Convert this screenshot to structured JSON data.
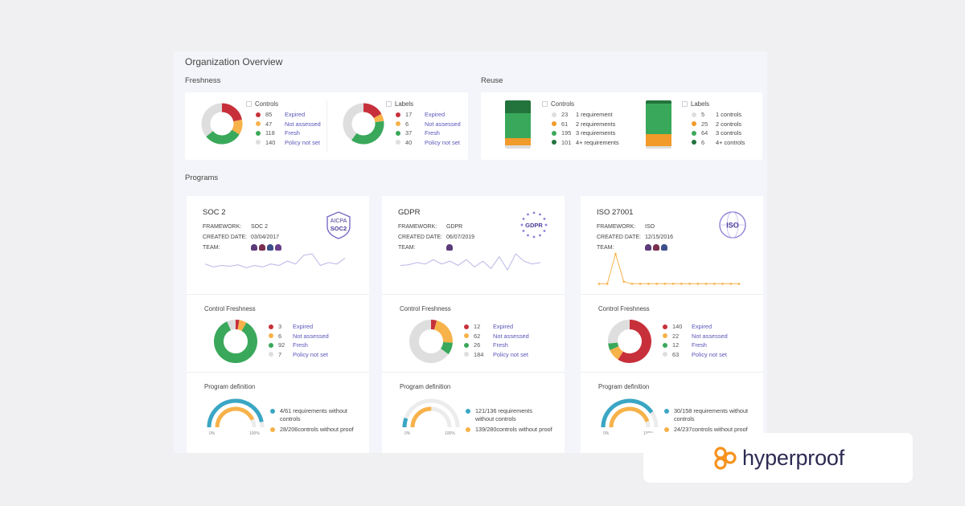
{
  "page": {
    "title": "Organization Overview",
    "freshness_label": "Freshness",
    "reuse_label": "Reuse",
    "programs_label": "Programs"
  },
  "colors": {
    "expired": "#c7303a",
    "not_assessed": "#f7b24a",
    "fresh": "#3aa85a",
    "policy_not_set": "#dedede",
    "reuse_light": "#dedede",
    "reuse_orange": "#f29a2a",
    "reuse_green": "#3aa85a",
    "reuse_dark": "#23743c",
    "gauge_req": "#3aa6c4",
    "gauge_proof": "#f7b24a",
    "brand_orange": "#f6921e"
  },
  "freshness": {
    "controls": {
      "title": "Controls",
      "items": [
        {
          "value": 85,
          "label": "Expired"
        },
        {
          "value": 47,
          "label": "Not assessed"
        },
        {
          "value": 118,
          "label": "Fresh"
        },
        {
          "value": 140,
          "label": "Policy not set"
        }
      ]
    },
    "labels": {
      "title": "Labels",
      "items": [
        {
          "value": 17,
          "label": "Expired"
        },
        {
          "value": 6,
          "label": "Not assessed"
        },
        {
          "value": 37,
          "label": "Fresh"
        },
        {
          "value": 40,
          "label": "Policy not set"
        }
      ]
    }
  },
  "reuse": {
    "controls": {
      "title": "Controls",
      "items": [
        {
          "value": 23,
          "label": "1 requirement"
        },
        {
          "value": 61,
          "label": "2 requirements"
        },
        {
          "value": 195,
          "label": "3 requirements"
        },
        {
          "value": 101,
          "label": "4+ requirements"
        }
      ]
    },
    "labels": {
      "title": "Labels",
      "items": [
        {
          "value": 5,
          "label": "1 controls"
        },
        {
          "value": 25,
          "label": "2 controls"
        },
        {
          "value": 64,
          "label": "3 controls"
        },
        {
          "value": 6,
          "label": "4+ controls"
        }
      ]
    }
  },
  "programs": [
    {
      "name": "SOC 2",
      "framework_key": "FRAMEWORK:",
      "framework": "SOC 2",
      "created_key": "CREATED DATE:",
      "created": "03/04/2017",
      "team_key": "TEAM:",
      "team_size": 4,
      "badge_icon": "aicpa-soc2-badge-icon",
      "badge_top": "AICPA",
      "badge_bottom": "SOC2",
      "trend": [
        30,
        26,
        28,
        27,
        29,
        25,
        28,
        26,
        30,
        28,
        34,
        30,
        42,
        44,
        28,
        32,
        30,
        38
      ],
      "freshness_title": "Control Freshness",
      "freshness": [
        {
          "value": "3",
          "label": "Expired"
        },
        {
          "value": "6",
          "label": "Not assessed"
        },
        {
          "value": "92",
          "label": "Fresh"
        },
        {
          "value": "7",
          "label": "Policy not set"
        }
      ],
      "definition_title": "Program definition",
      "requirements": {
        "text": "4/61 requirements without controls",
        "value": 4,
        "total": 61
      },
      "proof": {
        "text": "28/206controls without proof",
        "value": 28,
        "total": 206
      },
      "axis_min": "0%",
      "axis_max": "100%"
    },
    {
      "name": "GDPR",
      "framework_key": "FRAMEWORK:",
      "framework": "GDPR",
      "created_key": "CREATED DATE:",
      "created": "06/07/2019",
      "team_key": "TEAM:",
      "team_size": 1,
      "badge_icon": "gdpr-stars-badge-icon",
      "badge_top": "",
      "badge_bottom": "GDPR",
      "trend": [
        28,
        29,
        32,
        30,
        36,
        30,
        34,
        28,
        36,
        26,
        34,
        24,
        40,
        22,
        44,
        34,
        30,
        32
      ],
      "freshness_title": "Control Freshness",
      "freshness": [
        {
          "value": "12",
          "label": "Expired"
        },
        {
          "value": "62",
          "label": "Not assessed"
        },
        {
          "value": "26",
          "label": "Fresh"
        },
        {
          "value": "184",
          "label": "Policy not set"
        }
      ],
      "definition_title": "Program definition",
      "requirements": {
        "text": "121/136 requirements without controls",
        "value": 121,
        "total": 136
      },
      "proof": {
        "text": "139/280controls without proof",
        "value": 139,
        "total": 280
      },
      "axis_min": "0%",
      "axis_max": "100%"
    },
    {
      "name": "ISO 27001",
      "framework_key": "FRAMEWORK:",
      "framework": "ISO",
      "created_key": "CREATED DATE:",
      "created": "12/15/2016",
      "team_key": "TEAM:",
      "team_size": 3,
      "badge_icon": "iso-globe-badge-icon",
      "badge_top": "",
      "badge_bottom": "ISO",
      "trend": [
        2,
        2,
        30,
        4,
        2,
        2,
        2,
        2,
        2,
        2,
        2,
        2,
        2,
        2,
        2,
        2,
        2,
        2
      ],
      "freshness_title": "Control Freshness",
      "freshness": [
        {
          "value": "140",
          "label": "Expired"
        },
        {
          "value": "22",
          "label": "Not assessed"
        },
        {
          "value": "12",
          "label": "Fresh"
        },
        {
          "value": "63",
          "label": "Policy not set"
        }
      ],
      "definition_title": "Program definition",
      "requirements": {
        "text": "30/158 requirements without controls",
        "value": 30,
        "total": 158
      },
      "proof": {
        "text": "24/237controls without proof",
        "value": 24,
        "total": 237
      },
      "axis_min": "0%",
      "axis_max": "100%"
    }
  ],
  "brand": {
    "name": "hyperproof",
    "logo_icon": "hyperproof-logo-icon"
  }
}
